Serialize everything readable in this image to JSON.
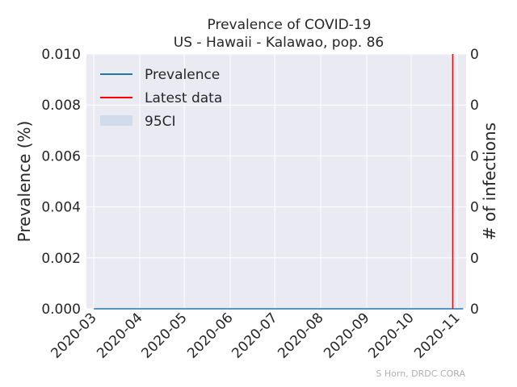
{
  "chart_data": {
    "type": "line",
    "title_lines": [
      "Prevalence of COVID-19",
      "US - Hawaii - Kalawao, pop. 86"
    ],
    "ylabel": "Prevalence (%)",
    "y2label": "# of infections",
    "ylim": [
      0,
      0.01
    ],
    "y_ticks": [
      "0.000",
      "0.002",
      "0.004",
      "0.006",
      "0.008",
      "0.010"
    ],
    "y_tick_values": [
      0,
      0.002,
      0.004,
      0.006,
      0.008,
      0.01
    ],
    "y2_ticks": [
      "0",
      "0",
      "0",
      "0",
      "0",
      "0"
    ],
    "xlim": [
      "2020-02-25",
      "2020-11-07"
    ],
    "x_ticks": [
      "2020-03",
      "2020-04",
      "2020-05",
      "2020-06",
      "2020-07",
      "2020-08",
      "2020-09",
      "2020-10",
      "2020-11"
    ],
    "x_tick_dates": [
      "2020-03-01",
      "2020-04-01",
      "2020-05-01",
      "2020-06-01",
      "2020-07-01",
      "2020-08-01",
      "2020-09-01",
      "2020-10-01",
      "2020-11-01"
    ],
    "series": [
      {
        "name": "Prevalence",
        "color": "#1f77b4",
        "x": [
          "2020-03-01",
          "2020-11-05"
        ],
        "values": [
          0,
          0
        ]
      }
    ],
    "ci_band": {
      "name": "95CI",
      "color": "#d0dcea",
      "x": [
        "2020-03-01",
        "2020-11-05"
      ],
      "lower": [
        0,
        0
      ],
      "upper": [
        0,
        0
      ]
    },
    "latest_data": {
      "name": "Latest data",
      "color": "#ff0000",
      "date": "2020-10-29"
    },
    "grid": true,
    "legend_placement": "top-left",
    "credit": "S Horn, DRDC CORA"
  }
}
